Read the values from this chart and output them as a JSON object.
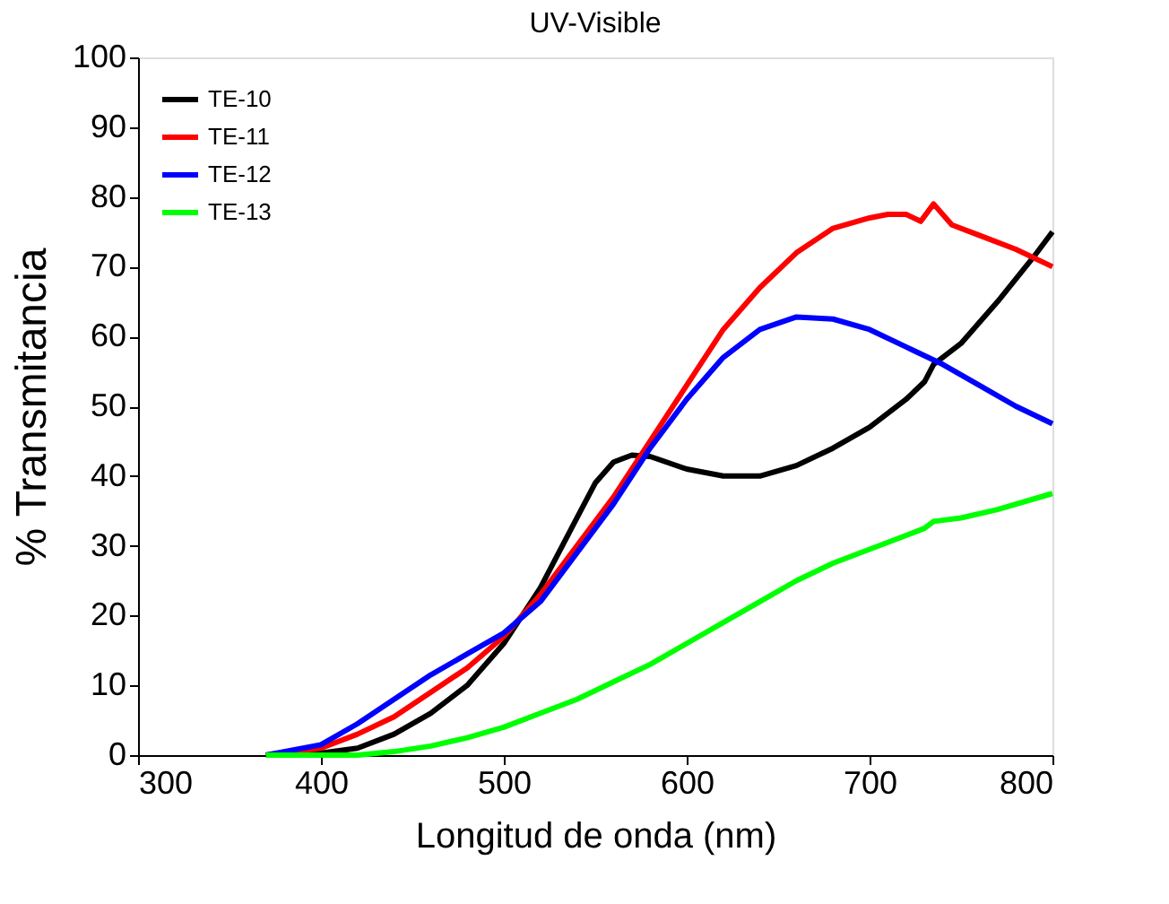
{
  "chart_data": {
    "type": "line",
    "title": "UV-Visible",
    "xlabel": "Longitud de onda (nm)",
    "ylabel": "% Transmitancia",
    "xlim": [
      300,
      800
    ],
    "xticks": [
      300,
      400,
      500,
      600,
      700,
      800
    ],
    "ylim": [
      0,
      100
    ],
    "yticks": [
      0,
      10,
      20,
      30,
      40,
      50,
      60,
      70,
      80,
      90,
      100
    ],
    "grid": false,
    "legend": "top left",
    "marker": "none",
    "line_style": "solid",
    "series": [
      {
        "name": "TE-10",
        "color": "#000000",
        "x": [
          370,
          400,
          420,
          440,
          460,
          480,
          500,
          520,
          540,
          550,
          560,
          570,
          580,
          600,
          620,
          640,
          660,
          680,
          700,
          720,
          730,
          735,
          750,
          770,
          790,
          800
        ],
        "values": [
          0,
          0.3,
          1,
          3,
          6,
          10,
          16,
          24,
          34,
          39,
          42,
          43,
          42.8,
          41,
          40,
          40,
          41.5,
          44,
          47,
          51,
          53.5,
          56,
          59,
          65,
          71.5,
          75
        ]
      },
      {
        "name": "TE-11",
        "color": "#ff0000",
        "x": [
          370,
          400,
          420,
          440,
          460,
          480,
          500,
          520,
          540,
          560,
          580,
          600,
          620,
          640,
          660,
          680,
          700,
          710,
          720,
          728,
          735,
          745,
          760,
          780,
          800
        ],
        "values": [
          0,
          1,
          3,
          5.5,
          9,
          12.5,
          17,
          23,
          30,
          37,
          45,
          53,
          61,
          67,
          72,
          75.5,
          77,
          77.5,
          77.5,
          76.5,
          79,
          76,
          74.5,
          72.5,
          70
        ]
      },
      {
        "name": "TE-12",
        "color": "#0000ff",
        "x": [
          370,
          400,
          420,
          440,
          460,
          480,
          500,
          520,
          540,
          560,
          580,
          600,
          620,
          640,
          660,
          680,
          700,
          720,
          740,
          760,
          780,
          800
        ],
        "values": [
          0,
          1.5,
          4.5,
          8,
          11.5,
          14.5,
          17.5,
          22,
          29,
          36,
          44,
          51,
          57,
          61,
          62.8,
          62.5,
          61,
          58.5,
          56,
          53,
          50,
          47.5
        ]
      },
      {
        "name": "TE-13",
        "color": "#00ff00",
        "x": [
          370,
          420,
          440,
          460,
          480,
          500,
          520,
          540,
          560,
          580,
          600,
          620,
          640,
          660,
          680,
          700,
          720,
          730,
          735,
          750,
          770,
          800
        ],
        "values": [
          0,
          0,
          0.5,
          1.3,
          2.5,
          4,
          6,
          8,
          10.5,
          13,
          16,
          19,
          22,
          25,
          27.5,
          29.5,
          31.5,
          32.5,
          33.5,
          34,
          35.2,
          37.5
        ]
      }
    ]
  }
}
